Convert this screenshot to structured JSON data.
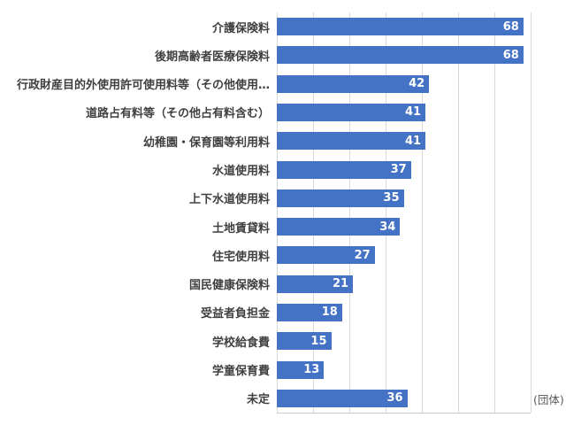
{
  "chart_data": {
    "type": "bar",
    "orientation": "horizontal",
    "title": "",
    "xlabel": "",
    "ylabel": "",
    "unit_label": "(団体)",
    "categories": [
      "介護保険料",
      "後期高齢者医療保険料",
      "行政財産目的外使用許可使用料等（その他使用…",
      "道路占有料等（その他占有料含む）",
      "幼稚園・保育園等利用料",
      "水道使用料",
      "上下水道使用料",
      "土地賃貸料",
      "住宅使用料",
      "国民健康保険料",
      "受益者負担金",
      "学校給食費",
      "学童保育費",
      "未定"
    ],
    "values": [
      68,
      68,
      42,
      41,
      41,
      37,
      35,
      34,
      27,
      21,
      18,
      15,
      13,
      36
    ],
    "xlim": [
      0,
      70
    ],
    "grid_step": 10,
    "grid_on": true,
    "legend": "none",
    "colors": {
      "bar": "#4472C4",
      "value_label": "#FFFFFF",
      "category_label": "#404040",
      "gridline": "#D9D9D9",
      "unit_label": "#595959"
    }
  }
}
